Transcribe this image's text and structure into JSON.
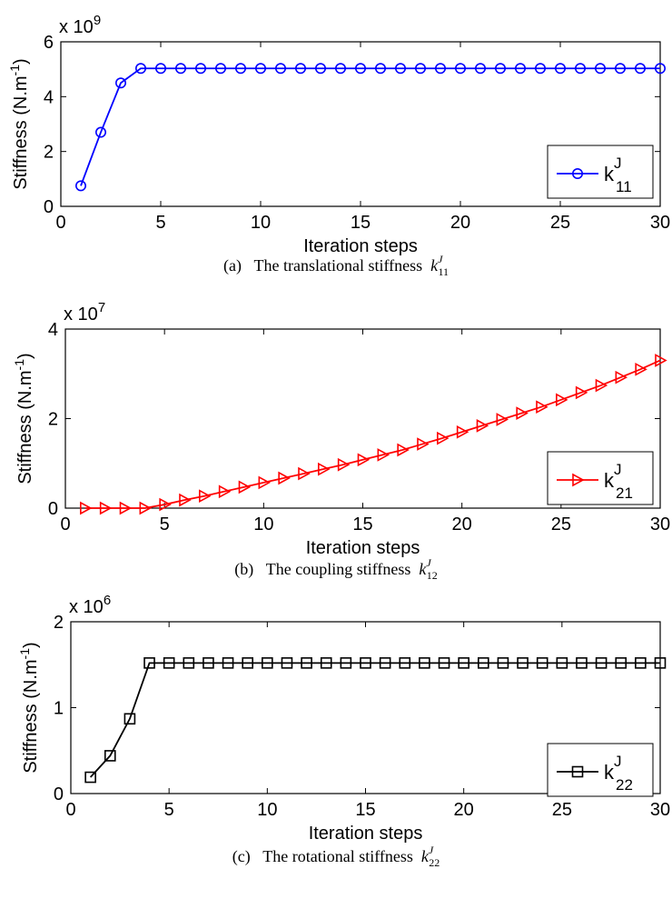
{
  "chart_data": [
    {
      "type": "line",
      "multiplier": "x 10",
      "multiplier_exp": "9",
      "ylabel": "Stiffness (N.m",
      "ylabel_sup": "-1",
      "ylabel_end": ")",
      "xlabel": "Iteration steps",
      "xlim": [
        0,
        30
      ],
      "ylim": [
        0,
        6
      ],
      "xticks": [
        0,
        5,
        10,
        15,
        20,
        25,
        30
      ],
      "yticks": [
        0,
        2,
        4,
        6
      ],
      "x": [
        1,
        2,
        3,
        4,
        5,
        6,
        7,
        8,
        9,
        10,
        11,
        12,
        13,
        14,
        15,
        16,
        17,
        18,
        19,
        20,
        21,
        22,
        23,
        24,
        25,
        26,
        27,
        28,
        29,
        30
      ],
      "series": [
        {
          "name": "k",
          "name_sup": "J",
          "name_sub": "11",
          "color": "#0000ff",
          "marker": "circle",
          "values": [
            0.75,
            2.7,
            4.5,
            5.03,
            5.03,
            5.03,
            5.03,
            5.03,
            5.03,
            5.03,
            5.03,
            5.03,
            5.03,
            5.03,
            5.03,
            5.03,
            5.03,
            5.03,
            5.03,
            5.03,
            5.03,
            5.03,
            5.03,
            5.03,
            5.03,
            5.03,
            5.03,
            5.03,
            5.03,
            5.03
          ]
        }
      ],
      "legend_position": "lower-right",
      "caption_prefix": "(a)",
      "caption_text": "The translational stiffness",
      "caption_sym": "k",
      "caption_sup": "J",
      "caption_sub": "11"
    },
    {
      "type": "line",
      "multiplier": "x 10",
      "multiplier_exp": "7",
      "ylabel": "Stiffness (N.m",
      "ylabel_sup": "-1",
      "ylabel_end": ")",
      "xlabel": "Iteration steps",
      "xlim": [
        0,
        30
      ],
      "ylim": [
        0,
        4
      ],
      "xticks": [
        0,
        5,
        10,
        15,
        20,
        25,
        30
      ],
      "yticks": [
        0,
        2,
        4
      ],
      "x": [
        1,
        2,
        3,
        4,
        5,
        6,
        7,
        8,
        9,
        10,
        11,
        12,
        13,
        14,
        15,
        16,
        17,
        18,
        19,
        20,
        21,
        22,
        23,
        24,
        25,
        26,
        27,
        28,
        29,
        30
      ],
      "series": [
        {
          "name": "k",
          "name_sup": "J",
          "name_sub": "21",
          "color": "#ff0000",
          "marker": "triangle-right",
          "values": [
            0,
            0,
            0,
            0,
            0.08,
            0.18,
            0.27,
            0.37,
            0.47,
            0.57,
            0.67,
            0.77,
            0.87,
            0.97,
            1.08,
            1.19,
            1.3,
            1.43,
            1.56,
            1.7,
            1.84,
            1.98,
            2.12,
            2.26,
            2.42,
            2.58,
            2.74,
            2.92,
            3.1,
            3.3
          ]
        }
      ],
      "legend_position": "lower-right",
      "caption_prefix": "(b)",
      "caption_text": "The coupling stiffness",
      "caption_sym": "k",
      "caption_sup": "J",
      "caption_sub": "12"
    },
    {
      "type": "line",
      "multiplier": "x 10",
      "multiplier_exp": "6",
      "ylabel": "Stiffness (N.m",
      "ylabel_sup": "-1",
      "ylabel_end": ")",
      "xlabel": "Iteration steps",
      "xlim": [
        0,
        30
      ],
      "ylim": [
        0,
        2
      ],
      "xticks": [
        0,
        5,
        10,
        15,
        20,
        25,
        30
      ],
      "yticks": [
        0,
        1,
        2
      ],
      "x": [
        1,
        2,
        3,
        4,
        5,
        6,
        7,
        8,
        9,
        10,
        11,
        12,
        13,
        14,
        15,
        16,
        17,
        18,
        19,
        20,
        21,
        22,
        23,
        24,
        25,
        26,
        27,
        28,
        29,
        30
      ],
      "series": [
        {
          "name": "k",
          "name_sup": "J",
          "name_sub": "22",
          "color": "#000000",
          "marker": "square",
          "values": [
            0.19,
            0.44,
            0.87,
            1.52,
            1.52,
            1.52,
            1.52,
            1.52,
            1.52,
            1.52,
            1.52,
            1.52,
            1.52,
            1.52,
            1.52,
            1.52,
            1.52,
            1.52,
            1.52,
            1.52,
            1.52,
            1.52,
            1.52,
            1.52,
            1.52,
            1.52,
            1.52,
            1.52,
            1.52,
            1.52
          ]
        }
      ],
      "legend_position": "lower-right",
      "caption_prefix": "(c)",
      "caption_text": "The rotational stiffness",
      "caption_sym": "k",
      "caption_sup": "J",
      "caption_sub": "22"
    }
  ]
}
